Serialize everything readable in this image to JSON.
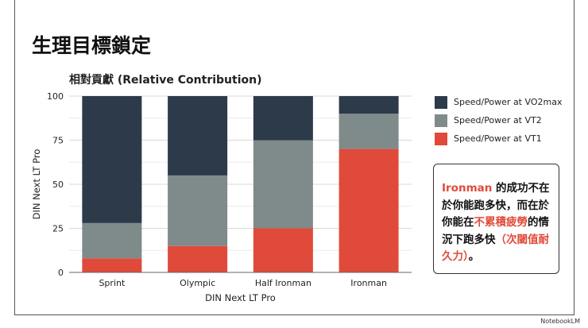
{
  "slide": {
    "title": "生理目標鎖定",
    "callout": {
      "parts": [
        {
          "text": "Ironman",
          "highlight": true
        },
        {
          "text": " 的成功不在於你能跑多快，而在於你能在",
          "highlight": false
        },
        {
          "text": "不累積疲勞",
          "highlight": true
        },
        {
          "text": "的情況下跑多快",
          "highlight": false
        },
        {
          "text": "（次閾值耐久力）",
          "highlight": true
        },
        {
          "text": "。",
          "highlight": false
        }
      ]
    },
    "watermark": "NotebookLM"
  },
  "chart_data": {
    "type": "bar",
    "stacked": true,
    "title": "相對貢獻 (Relative Contribution)",
    "xlabel": "DIN Next LT Pro",
    "ylabel": "DIN Next LT Pro",
    "ylim": [
      0,
      100
    ],
    "yticks": [
      0,
      25,
      50,
      75,
      100
    ],
    "grid": true,
    "legend_position": "right",
    "categories": [
      "Sprint",
      "Olympic",
      "Half Ironman",
      "Ironman"
    ],
    "series": [
      {
        "name": "Speed/Power at VT1",
        "color": "#e04a3a",
        "values": [
          8,
          15,
          25,
          70
        ]
      },
      {
        "name": "Speed/Power at VT2",
        "color": "#7f8a8a",
        "values": [
          20,
          40,
          50,
          20
        ]
      },
      {
        "name": "Speed/Power at VO2max",
        "color": "#2c3a4a",
        "values": [
          72,
          45,
          25,
          10
        ]
      }
    ],
    "legend_order": [
      2,
      1,
      0
    ]
  }
}
